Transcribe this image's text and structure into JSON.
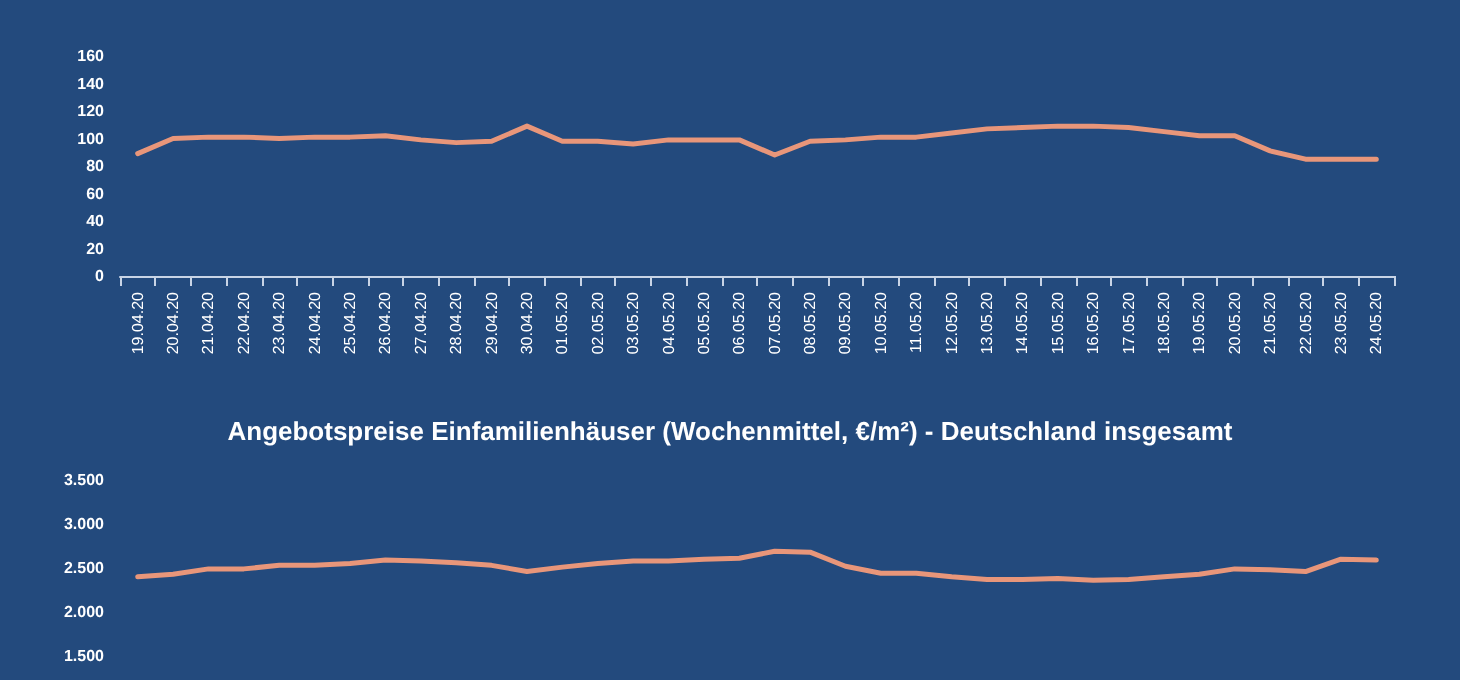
{
  "chart_data": [
    {
      "type": "line",
      "categories": [
        "19.04.20",
        "20.04.20",
        "21.04.20",
        "22.04.20",
        "23.04.20",
        "24.04.20",
        "25.04.20",
        "26.04.20",
        "27.04.20",
        "28.04.20",
        "29.04.20",
        "30.04.20",
        "01.05.20",
        "02.05.20",
        "03.05.20",
        "04.05.20",
        "05.05.20",
        "06.05.20",
        "07.05.20",
        "08.05.20",
        "09.05.20",
        "10.05.20",
        "11.05.20",
        "12.05.20",
        "13.05.20",
        "14.05.20",
        "15.05.20",
        "16.05.20",
        "17.05.20",
        "18.05.20",
        "19.05.20",
        "20.05.20",
        "21.05.20",
        "22.05.20",
        "23.05.20",
        "24.05.20"
      ],
      "series": [
        {
          "color": "#e8967a",
          "values": [
            89,
            100,
            101,
            101,
            100,
            101,
            101,
            102,
            99,
            97,
            98,
            109,
            98,
            98,
            96,
            99,
            99,
            99,
            88,
            98,
            99,
            101,
            101,
            104,
            107,
            108,
            109,
            109,
            108,
            105,
            102,
            102,
            91,
            85,
            85,
            85
          ]
        }
      ],
      "ylim": [
        0,
        160
      ],
      "yticks": [
        0,
        20,
        40,
        60,
        80,
        100,
        120,
        140,
        160
      ],
      "marker": "none",
      "line_style": "solid"
    },
    {
      "type": "line",
      "title": "Angebotspreise Einfamilienhäuser (Wochenmittel, €/m²) - Deutschland insgesamt",
      "categories": [
        null,
        null,
        null,
        null,
        null,
        null,
        null,
        null,
        null,
        null,
        null,
        null,
        null,
        null,
        null,
        null,
        null,
        null,
        null,
        null,
        null,
        null,
        null,
        null,
        null,
        null,
        null,
        null,
        null,
        null,
        null,
        null,
        null,
        null,
        null,
        null
      ],
      "series": [
        {
          "color": "#e8967a",
          "values": [
            2400,
            2430,
            2490,
            2490,
            2530,
            2530,
            2550,
            2590,
            2580,
            2560,
            2530,
            2460,
            2510,
            2550,
            2580,
            2580,
            2600,
            2610,
            2690,
            2680,
            2520,
            2440,
            2440,
            2400,
            2370,
            2370,
            2380,
            2360,
            2370,
            2400,
            2430,
            2490,
            2480,
            2460,
            2600,
            2590
          ]
        }
      ],
      "ylim": [
        1500,
        3500
      ],
      "yticks": [
        {
          "value": 1500,
          "label": "1.500"
        },
        {
          "value": 2000,
          "label": "2.000"
        },
        {
          "value": 2500,
          "label": "2.500"
        },
        {
          "value": 3000,
          "label": "3.000"
        },
        {
          "value": 3500,
          "label": "3.500"
        }
      ],
      "marker": "none",
      "line_style": "solid"
    }
  ]
}
